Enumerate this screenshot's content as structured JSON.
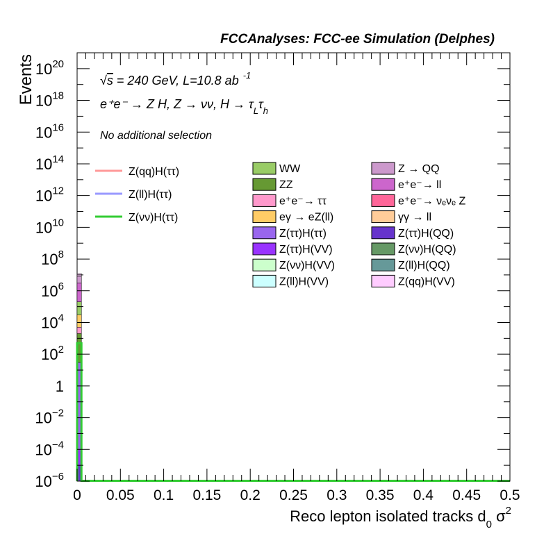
{
  "chart_data": {
    "type": "bar",
    "title": "FCCAnalyses: FCC-ee Simulation (Delphes)",
    "xlabel": "Reco lepton isolated tracks d",
    "xlabel_sub": "0",
    "xlabel_tail": " σ",
    "xlabel_sup": "2",
    "ylabel": "Events",
    "xlim": [
      0,
      0.5
    ],
    "ylim": [
      1e-06,
      1e+21
    ],
    "log_y": true,
    "x_ticks": [
      "0",
      "0.05",
      "0.1",
      "0.15",
      "0.2",
      "0.25",
      "0.3",
      "0.35",
      "0.4",
      "0.45",
      "0.5"
    ],
    "y_ticks": [
      {
        "base": "10",
        "exp": "20"
      },
      {
        "base": "10",
        "exp": "18"
      },
      {
        "base": "10",
        "exp": "16"
      },
      {
        "base": "10",
        "exp": "14"
      },
      {
        "base": "10",
        "exp": "12"
      },
      {
        "base": "10",
        "exp": "10"
      },
      {
        "base": "10",
        "exp": "8"
      },
      {
        "base": "10",
        "exp": "6"
      },
      {
        "base": "10",
        "exp": "4"
      },
      {
        "base": "10",
        "exp": "2"
      },
      {
        "base": "1",
        "exp": ""
      },
      {
        "base": "10",
        "exp": "−2"
      },
      {
        "base": "10",
        "exp": "−4"
      },
      {
        "base": "10",
        "exp": "−6"
      }
    ],
    "annotations": {
      "energy_prefix": "√",
      "energy_s": "s",
      "energy": " = 240 GeV, L=10.8 ab",
      "energy_sup": "-1",
      "process": "e⁺e⁻ → Z H, Z → νν, H → τ",
      "process_sub1": "L",
      "process_mid": "τ",
      "process_sub2": "h",
      "selection": "No additional selection"
    },
    "stacked_bin": {
      "x_range": [
        0,
        0.005
      ],
      "segments": [
        {
          "name": "Z(qq)H(VV)",
          "color": "#ffccff",
          "top": 12000000.0
        },
        {
          "name": "Z → QQ",
          "color": "#cc99cc",
          "top": 8000000.0
        },
        {
          "name": "e⁺e⁻→ ll",
          "color": "#cc66cc",
          "top": 3000000.0
        },
        {
          "name": "WW",
          "color": "#99cc66",
          "top": 200000.0
        },
        {
          "name": "eγ → eZ(ll)",
          "color": "#ffcc66",
          "top": 30000.0
        },
        {
          "name": "e⁺e⁻→ ττ",
          "color": "#ff99cc",
          "top": 5000.0
        },
        {
          "name": "ZZ",
          "color": "#669933",
          "top": 2000.0
        },
        {
          "name": "Z(ττ)H(ττ)",
          "color": "#9966ee",
          "top": 30
        },
        {
          "name": "Z(ττ)H(VV)",
          "color": "#9933ff",
          "top": 0.0001
        },
        {
          "name": "Z(ττ)H(QQ)",
          "color": "#6633cc",
          "top": 1e-05
        }
      ]
    },
    "signal_lines": [
      {
        "name": "Z(qq)H(ττ)",
        "color": "#ff9999",
        "values": []
      },
      {
        "name": "Z(ll)H(ττ)",
        "color": "#9999ff",
        "values": []
      },
      {
        "name": "Z(νν)H(ττ)",
        "color": "#33cc33",
        "values": [
          {
            "x0": 0,
            "x1": 0.005,
            "y": 500
          }
        ]
      }
    ],
    "legend_stack": [
      {
        "name": "WW",
        "color": "#99cc66"
      },
      {
        "name": "Z → QQ",
        "color": "#cc99cc"
      },
      {
        "name": "ZZ",
        "color": "#669933"
      },
      {
        "name": "e⁺e⁻→ ll",
        "color": "#cc66cc"
      },
      {
        "name": "e⁺e⁻→ ττ",
        "color": "#ff99cc"
      },
      {
        "name": "e⁺e⁻→ νₑνₑ Z",
        "color": "#ff6699"
      },
      {
        "name": "eγ → eZ(ll)",
        "color": "#ffcc66"
      },
      {
        "name": "γγ → ll",
        "color": "#ffcc99"
      },
      {
        "name": "Z(ττ)H(ττ)",
        "color": "#9966ee"
      },
      {
        "name": "Z(ττ)H(QQ)",
        "color": "#6633cc"
      },
      {
        "name": "Z(ττ)H(VV)",
        "color": "#9933ff"
      },
      {
        "name": "Z(νν)H(QQ)",
        "color": "#669966"
      },
      {
        "name": "Z(νν)H(VV)",
        "color": "#ccffcc"
      },
      {
        "name": "Z(ll)H(QQ)",
        "color": "#669999"
      },
      {
        "name": "Z(ll)H(VV)",
        "color": "#ccffff"
      },
      {
        "name": "Z(qq)H(VV)",
        "color": "#ffccff"
      }
    ],
    "grid": false,
    "legend_placement": "top-right"
  }
}
